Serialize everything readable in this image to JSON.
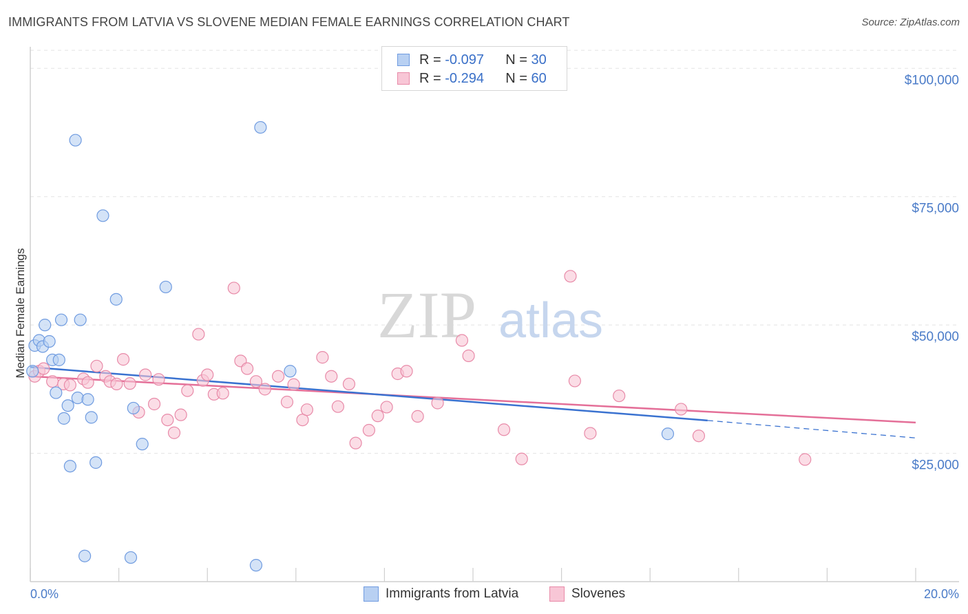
{
  "title": "IMMIGRANTS FROM LATVIA VS SLOVENE MEDIAN FEMALE EARNINGS CORRELATION CHART",
  "source": "Source: ZipAtlas.com",
  "watermark": {
    "zip": "ZIP",
    "atlas": "atlas"
  },
  "colors": {
    "latvia_fill": "#b8d0f2",
    "latvia_stroke": "#6f9be0",
    "latvia_line": "#3a72d0",
    "slovene_fill": "#f8c6d6",
    "slovene_stroke": "#e88aa8",
    "slovene_line": "#e46f98",
    "axis_text": "#4a7bc8",
    "grid": "#e3e3e3"
  },
  "legend": {
    "rows": [
      {
        "r_label": "R =",
        "r_value": "-0.097",
        "n_label": "N =",
        "n_value": "30"
      },
      {
        "r_label": "R =",
        "r_value": "-0.294",
        "n_label": "N =",
        "n_value": "60"
      }
    ]
  },
  "bottom_legend": [
    "Immigrants from Latvia",
    "Slovenes"
  ],
  "chart_data": {
    "type": "scatter",
    "xlabel": "",
    "ylabel": "Median Female Earnings",
    "xlim": [
      0,
      20
    ],
    "ylim": [
      0,
      105000
    ],
    "x_tick_labels": {
      "min": "0.0%",
      "max": "20.0%"
    },
    "y_ticks": [
      {
        "value": 25000,
        "label": "$25,000"
      },
      {
        "value": 50000,
        "label": "$50,000"
      },
      {
        "value": 75000,
        "label": "$75,000"
      },
      {
        "value": 100000,
        "label": "$100,000"
      }
    ],
    "series": [
      {
        "name": "Immigrants from Latvia",
        "points": [
          [
            0.05,
            41000
          ],
          [
            0.1,
            46000
          ],
          [
            0.2,
            47000
          ],
          [
            0.28,
            45800
          ],
          [
            0.33,
            50000
          ],
          [
            0.43,
            46800
          ],
          [
            0.5,
            43200
          ],
          [
            0.58,
            36800
          ],
          [
            0.65,
            43200
          ],
          [
            0.7,
            51000
          ],
          [
            0.76,
            31800
          ],
          [
            0.85,
            34300
          ],
          [
            0.9,
            22500
          ],
          [
            1.02,
            86000
          ],
          [
            1.07,
            35800
          ],
          [
            1.13,
            51000
          ],
          [
            1.23,
            5000
          ],
          [
            1.3,
            35500
          ],
          [
            1.38,
            32000
          ],
          [
            1.48,
            23200
          ],
          [
            1.64,
            71300
          ],
          [
            1.94,
            55000
          ],
          [
            2.27,
            4700
          ],
          [
            2.33,
            33800
          ],
          [
            2.53,
            26800
          ],
          [
            3.06,
            57400
          ],
          [
            5.1,
            3200
          ],
          [
            5.2,
            88500
          ],
          [
            5.87,
            41000
          ],
          [
            14.4,
            28800
          ]
        ],
        "trend": {
          "x0": 0,
          "y0": 41800,
          "x1": 15.3,
          "y1": 31400,
          "dash_to_x": 20,
          "dash_to_y": 28000
        }
      },
      {
        "name": "Slovenes",
        "points": [
          [
            0.1,
            40000
          ],
          [
            0.2,
            41000
          ],
          [
            0.3,
            41500
          ],
          [
            0.5,
            39000
          ],
          [
            0.75,
            38500
          ],
          [
            0.9,
            38300
          ],
          [
            1.2,
            39500
          ],
          [
            1.3,
            38800
          ],
          [
            1.5,
            42000
          ],
          [
            1.7,
            40000
          ],
          [
            1.8,
            39000
          ],
          [
            1.95,
            38500
          ],
          [
            2.1,
            43300
          ],
          [
            2.25,
            38600
          ],
          [
            2.45,
            33000
          ],
          [
            2.6,
            40300
          ],
          [
            2.8,
            34600
          ],
          [
            2.9,
            39400
          ],
          [
            3.1,
            31500
          ],
          [
            3.25,
            29000
          ],
          [
            3.4,
            32500
          ],
          [
            3.55,
            37200
          ],
          [
            3.8,
            48200
          ],
          [
            3.9,
            39200
          ],
          [
            4.0,
            40300
          ],
          [
            4.15,
            36500
          ],
          [
            4.35,
            36700
          ],
          [
            4.6,
            57200
          ],
          [
            4.75,
            43000
          ],
          [
            4.9,
            41500
          ],
          [
            5.1,
            39000
          ],
          [
            5.3,
            37500
          ],
          [
            5.6,
            40000
          ],
          [
            5.8,
            35000
          ],
          [
            5.95,
            38400
          ],
          [
            6.15,
            31500
          ],
          [
            6.25,
            33500
          ],
          [
            6.6,
            43700
          ],
          [
            6.8,
            40000
          ],
          [
            6.95,
            34100
          ],
          [
            7.2,
            38500
          ],
          [
            7.35,
            27000
          ],
          [
            7.65,
            29500
          ],
          [
            7.85,
            32300
          ],
          [
            8.05,
            34000
          ],
          [
            8.3,
            40500
          ],
          [
            8.5,
            41000
          ],
          [
            8.75,
            32200
          ],
          [
            9.2,
            34800
          ],
          [
            9.75,
            47000
          ],
          [
            9.9,
            44000
          ],
          [
            10.7,
            29600
          ],
          [
            11.1,
            23900
          ],
          [
            12.2,
            59500
          ],
          [
            12.3,
            39100
          ],
          [
            12.65,
            28900
          ],
          [
            13.3,
            36200
          ],
          [
            14.7,
            33600
          ],
          [
            15.1,
            28400
          ],
          [
            17.5,
            23800
          ]
        ],
        "trend": {
          "x0": 0,
          "y0": 40000,
          "x1": 20,
          "y1": 31000
        }
      }
    ]
  }
}
